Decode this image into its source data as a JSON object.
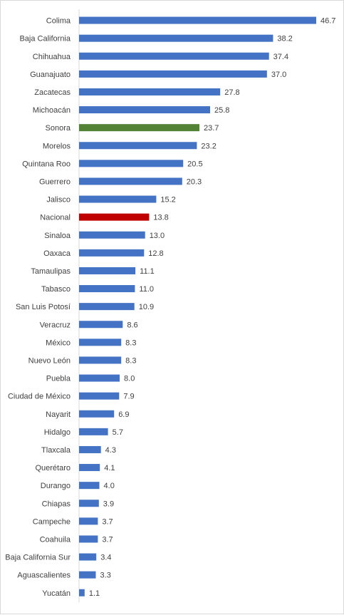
{
  "chart_data": {
    "type": "bar",
    "orientation": "horizontal",
    "title": "",
    "xlabel": "",
    "ylabel": "",
    "xlim": [
      0,
      46.7
    ],
    "grid": false,
    "legend": "none",
    "value_format": "one decimal",
    "colors": {
      "default": "#4472C4",
      "Sonora": "#548235",
      "Nacional": "#C00000"
    },
    "categories": [
      "Colima",
      "Baja California",
      "Chihuahua",
      "Guanajuato",
      "Zacatecas",
      "Michoacán",
      "Sonora",
      "Morelos",
      "Quintana Roo",
      "Guerrero",
      "Jalisco",
      "Nacional",
      "Sinaloa",
      "Oaxaca",
      "Tamaulipas",
      "Tabasco",
      "San Luis Potosí",
      "Veracruz",
      "México",
      "Nuevo León",
      "Puebla",
      "Ciudad de México",
      "Nayarit",
      "Hidalgo",
      "Tlaxcala",
      "Querétaro",
      "Durango",
      "Chiapas",
      "Campeche",
      "Coahuila",
      "Baja California Sur",
      "Aguascalientes",
      "Yucatán"
    ],
    "values": [
      46.7,
      38.2,
      37.4,
      37.0,
      27.8,
      25.8,
      23.7,
      23.2,
      20.5,
      20.3,
      15.2,
      13.8,
      13.0,
      12.8,
      11.1,
      11.0,
      10.9,
      8.6,
      8.3,
      8.3,
      8.0,
      7.9,
      6.9,
      5.7,
      4.3,
      4.1,
      4.0,
      3.9,
      3.7,
      3.7,
      3.4,
      3.3,
      1.1
    ],
    "value_labels": [
      "46.7",
      "38.2",
      "37.4",
      "37.0",
      "27.8",
      "25.8",
      "23.7",
      "23.2",
      "20.5",
      "20.3",
      "15.2",
      "13.8",
      "13.0",
      "12.8",
      "11.1",
      "11.0",
      "10.9",
      "8.6",
      "8.3",
      "8.3",
      "8.0",
      "7.9",
      "6.9",
      "5.7",
      "4.3",
      "4.1",
      "4.0",
      "3.9",
      "3.7",
      "3.7",
      "3.4",
      "3.3",
      "1.1"
    ]
  }
}
